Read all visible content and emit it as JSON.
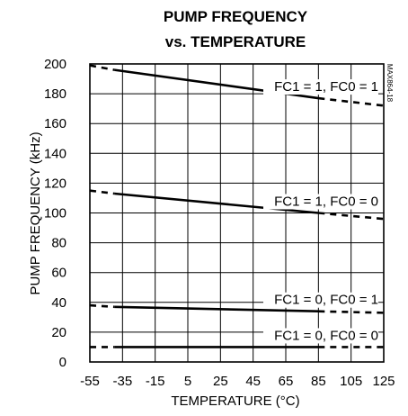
{
  "chart_data": {
    "type": "line",
    "title_lines": [
      "PUMP FREQUENCY",
      "vs. TEMPERATURE"
    ],
    "xlabel": "TEMPERATURE (°C)",
    "ylabel": "PUMP FREQUENCY (kHz)",
    "xlim": [
      -55,
      125
    ],
    "ylim": [
      0,
      200
    ],
    "x_ticks": [
      -55,
      -35,
      -15,
      5,
      25,
      45,
      65,
      85,
      105,
      125
    ],
    "x_tick_labels": [
      "-55",
      "-35",
      "-15",
      "5",
      "25",
      "45",
      "65",
      "85",
      "105",
      "125"
    ],
    "y_ticks": [
      0,
      20,
      40,
      60,
      80,
      100,
      120,
      140,
      160,
      180,
      200
    ],
    "y_tick_labels": [
      "0",
      "20",
      "40",
      "60",
      "80",
      "100",
      "120",
      "140",
      "160",
      "180",
      "200"
    ],
    "grid": true,
    "watermark": "MAX864-18",
    "series": [
      {
        "name": "FC1 = 1, FC0 = 1",
        "solid": [
          [
            -40,
            196
          ],
          [
            85,
            177
          ]
        ],
        "dashed_left": [
          [
            -55,
            199
          ],
          [
            -40,
            196
          ]
        ],
        "dashed_right": [
          [
            85,
            177
          ],
          [
            125,
            172
          ]
        ]
      },
      {
        "name": "FC1 = 1, FC0 = 0",
        "solid": [
          [
            -40,
            113
          ],
          [
            85,
            100
          ]
        ],
        "dashed_left": [
          [
            -55,
            115
          ],
          [
            -40,
            113
          ]
        ],
        "dashed_right": [
          [
            85,
            100
          ],
          [
            125,
            96
          ]
        ]
      },
      {
        "name": "FC1 = 0, FC0 = 1",
        "solid": [
          [
            -40,
            37
          ],
          [
            85,
            34
          ]
        ],
        "dashed_left": [
          [
            -55,
            38
          ],
          [
            -40,
            37
          ]
        ],
        "dashed_right": [
          [
            85,
            34
          ],
          [
            125,
            33
          ]
        ]
      },
      {
        "name": "FC1 = 0, FC0 = 0",
        "solid": [
          [
            -40,
            10
          ],
          [
            85,
            10
          ]
        ],
        "dashed_left": [
          [
            -55,
            10
          ],
          [
            -40,
            10
          ]
        ],
        "dashed_right": [
          [
            85,
            10
          ],
          [
            125,
            10
          ]
        ]
      }
    ]
  }
}
